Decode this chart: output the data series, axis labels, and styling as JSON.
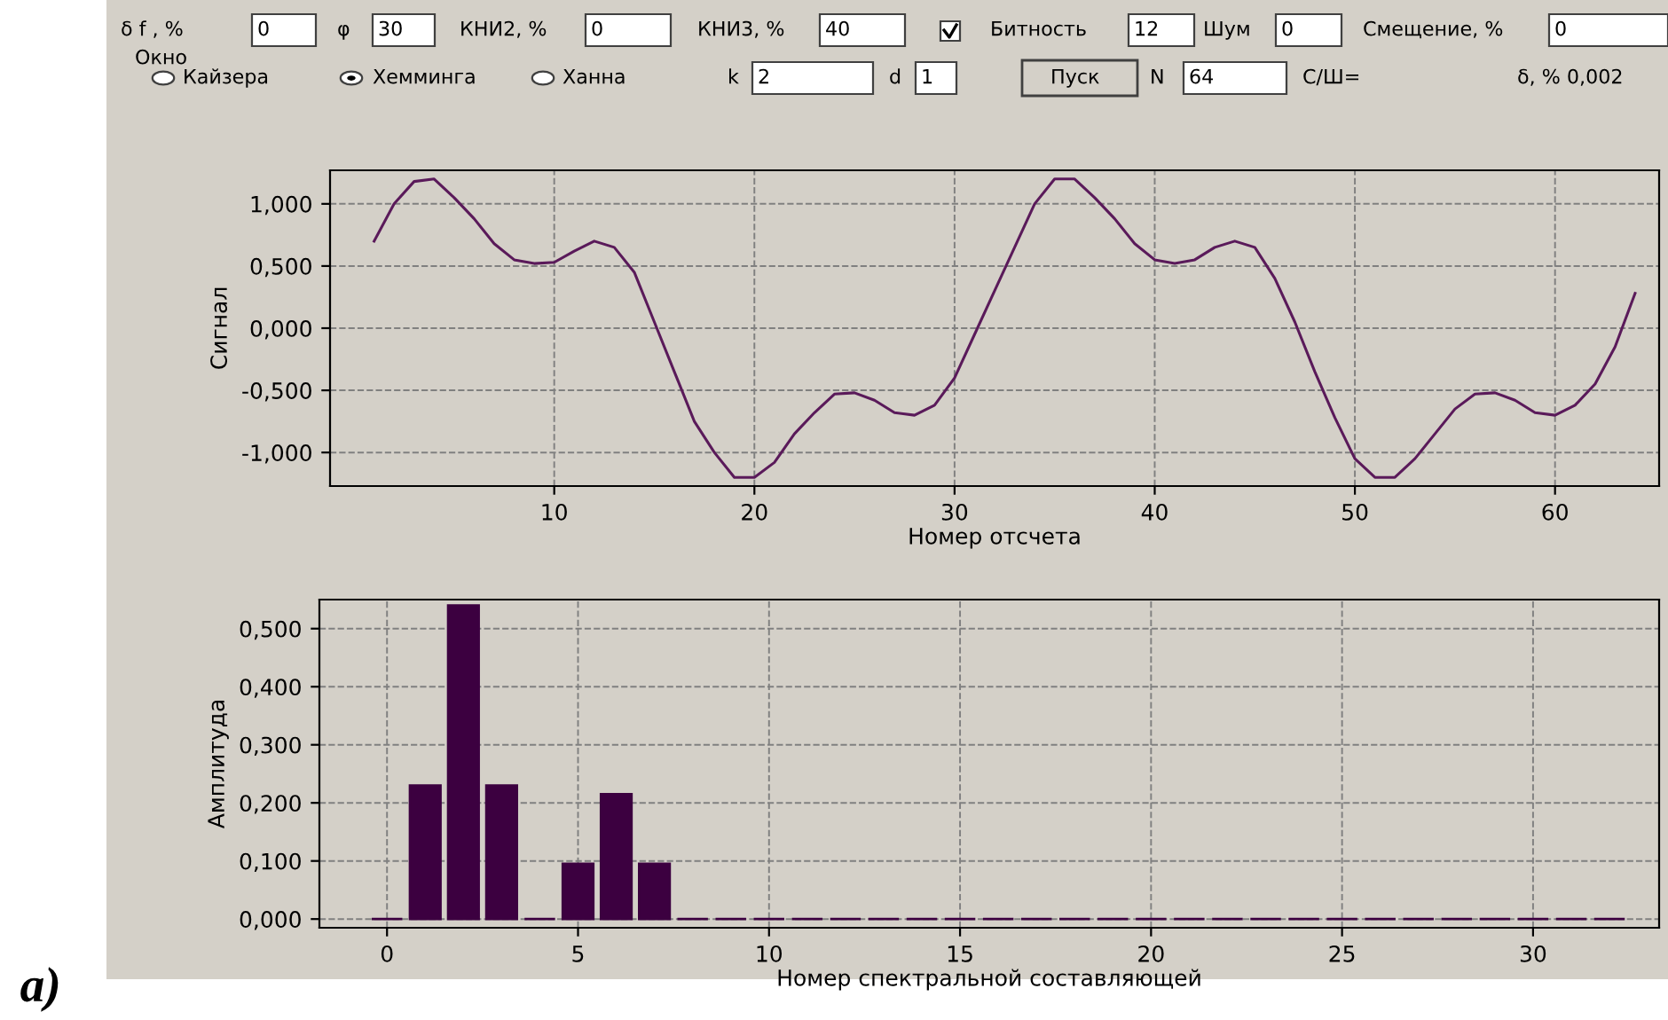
{
  "chart_data": [
    {
      "type": "other",
      "annotations": [
        "δ f , %",
        "0",
        "φ",
        "30",
        "КНИ2, %",
        "0",
        "КНИ3, %",
        "40",
        "Битность",
        "12",
        "Шум",
        "0",
        "Смещение, %",
        "0",
        "Окно",
        "Кайзера",
        "Хемминга",
        "Ханна",
        "k",
        "2",
        "d",
        "1",
        "Пуск",
        "N",
        "64",
        "С/Ш=",
        "δ, % 0,002"
      ]
    },
    {
      "type": "line",
      "xlabel": "Номер отсчета",
      "ylabel": "Сигнал",
      "color": "#5a1a5a",
      "marker": "none",
      "line_style": "solid",
      "grid": true,
      "x": [
        1,
        2,
        3,
        4,
        5,
        6,
        7,
        8,
        9,
        10,
        11,
        12,
        13,
        14,
        15,
        16,
        17,
        18,
        19,
        20,
        21,
        22,
        23,
        24,
        25,
        26,
        27,
        28,
        29,
        30,
        31,
        32,
        33,
        34,
        35,
        36,
        37,
        38,
        39,
        40,
        41,
        42,
        43,
        44,
        45,
        46,
        47,
        48,
        49,
        50,
        51,
        52,
        53,
        54,
        55,
        56,
        57,
        58,
        59,
        60,
        61,
        62,
        63,
        64
      ],
      "values": [
        0.7,
        1.0,
        1.18,
        1.2,
        1.05,
        0.88,
        0.68,
        0.55,
        0.52,
        0.53,
        0.62,
        0.7,
        0.65,
        0.45,
        0.05,
        -0.35,
        -0.75,
        -1.0,
        -1.2,
        -1.2,
        -1.08,
        -0.85,
        -0.68,
        -0.53,
        -0.52,
        -0.58,
        -0.68,
        -0.7,
        -0.62,
        -0.4,
        -0.05,
        0.3,
        0.65,
        1.0,
        1.2,
        1.2,
        1.05,
        0.88,
        0.68,
        0.55,
        0.52,
        0.55,
        0.65,
        0.7,
        0.65,
        0.4,
        0.05,
        -0.35,
        -0.72,
        -1.05,
        -1.2,
        -1.2,
        -1.05,
        -0.85,
        -0.65,
        -0.53,
        -0.52,
        -0.58,
        -0.68,
        -0.7,
        -0.62,
        -0.45,
        -0.15,
        0.28
      ],
      "xlim": [
        -1.2,
        65.2
      ],
      "xticks": [
        10,
        20,
        30,
        40,
        50,
        60
      ],
      "ylim": [
        -1.27,
        1.27
      ],
      "yticks": [
        {
          "value": -1,
          "label": "-1,000"
        },
        {
          "value": -0.5,
          "label": "-0,500"
        },
        {
          "value": 0,
          "label": "0,000"
        },
        {
          "value": 0.5,
          "label": "0,500"
        },
        {
          "value": 1,
          "label": "1,000"
        }
      ]
    },
    {
      "type": "bar",
      "xlabel": "Номер спектральной составляющей",
      "ylabel": "Амплитуда",
      "color": "#3c0040",
      "grid": true,
      "x": [
        0,
        1,
        2,
        3,
        4,
        5,
        6,
        7,
        8,
        9,
        10,
        11,
        12,
        13,
        14,
        15,
        16,
        17,
        18,
        19,
        20,
        21,
        22,
        23,
        24,
        25,
        26,
        27,
        28,
        29,
        30,
        31,
        32
      ],
      "values": [
        0,
        0.23,
        0.54,
        0.23,
        0,
        0.095,
        0.215,
        0.095,
        0,
        0,
        0,
        0,
        0,
        0,
        0,
        0,
        0,
        0,
        0,
        0,
        0,
        0,
        0,
        0,
        0,
        0,
        0,
        0,
        0,
        0,
        0,
        0,
        0
      ],
      "xlim": [
        -1.77,
        33.3
      ],
      "xticks": [
        0,
        5,
        10,
        15,
        20,
        25,
        30
      ],
      "ylim": [
        -0.015,
        0.55
      ],
      "yticks": [
        {
          "value": 0,
          "label": "0,000"
        },
        {
          "value": 0.1,
          "label": "0,100"
        },
        {
          "value": 0.2,
          "label": "0,200"
        },
        {
          "value": 0.3,
          "label": "0,300"
        },
        {
          "value": 0.4,
          "label": "0,400"
        },
        {
          "value": 0.5,
          "label": "0,500"
        }
      ],
      "annotations": [
        "а)"
      ]
    }
  ]
}
